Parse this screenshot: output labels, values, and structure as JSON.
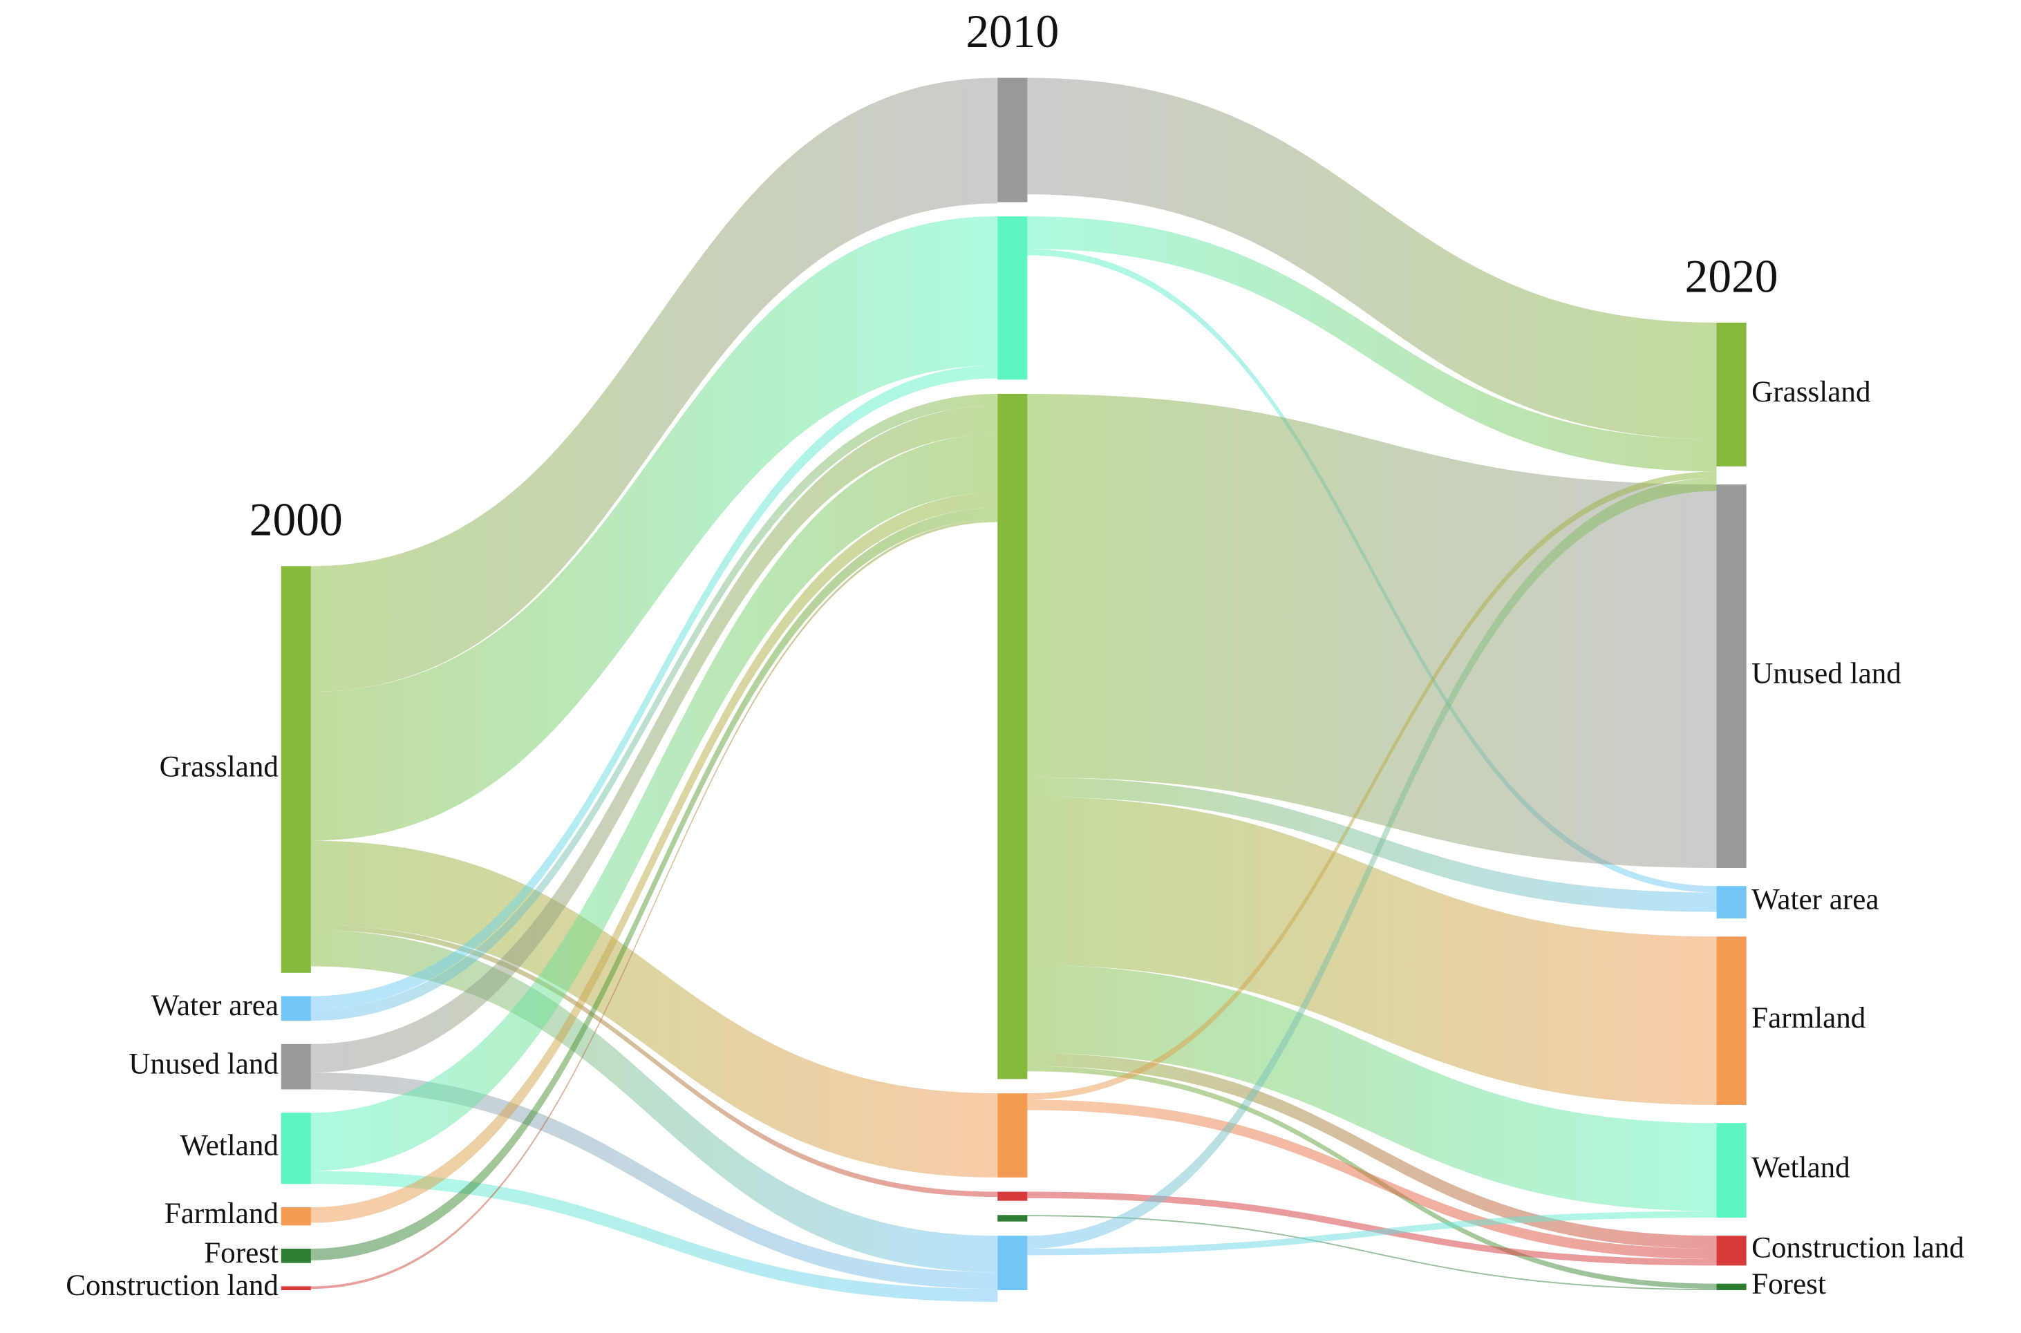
{
  "chart_data": {
    "type": "sankey",
    "columns": [
      {
        "label": "2000",
        "nodes": [
          {
            "name": "Grassland",
            "value": 314,
            "color": "#86b83e"
          },
          {
            "name": "Water area",
            "value": 19,
            "color": "#72c6f8"
          },
          {
            "name": "Unused land",
            "value": 35,
            "color": "#999999"
          },
          {
            "name": "Wetland",
            "value": 55,
            "color": "#5ef5c1"
          },
          {
            "name": "Farmland",
            "value": 14,
            "color": "#f39a53"
          },
          {
            "name": "Forest",
            "value": 11,
            "color": "#2e7d32"
          },
          {
            "name": "Construction land",
            "value": 3,
            "color": "#d63a3a"
          }
        ],
        "links": [
          {
            "source": "Grassland",
            "target": "Unused land",
            "value": 97
          },
          {
            "source": "Grassland",
            "target": "Wetland",
            "value": 115
          },
          {
            "source": "Grassland",
            "target": "Farmland",
            "value": 65
          },
          {
            "source": "Grassland",
            "target": "Construction land",
            "value": 4
          },
          {
            "source": "Grassland",
            "target": "Water area",
            "value": 28
          },
          {
            "source": "Water area",
            "target": "Wetland",
            "value": 10
          },
          {
            "source": "Water area",
            "target": "Grassland",
            "value": 9
          },
          {
            "source": "Unused land",
            "target": "Grassland",
            "value": 22
          },
          {
            "source": "Unused land",
            "target": "Water area",
            "value": 13
          },
          {
            "source": "Wetland",
            "target": "Grassland",
            "value": 45
          },
          {
            "source": "Wetland",
            "target": "Water area",
            "value": 10
          },
          {
            "source": "Farmland",
            "target": "Grassland",
            "value": 12
          },
          {
            "source": "Forest",
            "target": "Grassland",
            "value": 9
          },
          {
            "source": "Construction land",
            "target": "Grassland",
            "value": 2
          }
        ]
      },
      {
        "label": "2010",
        "nodes": [
          {
            "name": "Unused land",
            "value": 96,
            "color": "#999999"
          },
          {
            "name": "Wetland",
            "value": 126,
            "color": "#5ef5c1"
          },
          {
            "name": "Grassland",
            "value": 529,
            "color": "#86b83e"
          },
          {
            "name": "Farmland",
            "value": 65,
            "color": "#f39a53"
          },
          {
            "name": "Construction land",
            "value": 7,
            "color": "#d63a3a"
          },
          {
            "name": "Forest",
            "value": 5,
            "color": "#2e7d32"
          },
          {
            "name": "Water area",
            "value": 42,
            "color": "#72c6f8"
          }
        ],
        "links": [
          {
            "source": "Unused land",
            "target": "Grassland",
            "value": 90
          },
          {
            "source": "Wetland",
            "target": "Grassland",
            "value": 25
          },
          {
            "source": "Wetland",
            "target": "Water area",
            "value": 5
          },
          {
            "source": "Grassland",
            "target": "Unused land",
            "value": 296
          },
          {
            "source": "Grassland",
            "target": "Water area",
            "value": 15
          },
          {
            "source": "Grassland",
            "target": "Farmland",
            "value": 130
          },
          {
            "source": "Grassland",
            "target": "Wetland",
            "value": 68
          },
          {
            "source": "Grassland",
            "target": "Construction land",
            "value": 10
          },
          {
            "source": "Grassland",
            "target": "Forest",
            "value": 4
          },
          {
            "source": "Farmland",
            "target": "Grassland",
            "value": 5
          },
          {
            "source": "Farmland",
            "target": "Construction land",
            "value": 8
          },
          {
            "source": "Construction land",
            "target": "Construction land",
            "value": 5
          },
          {
            "source": "Forest",
            "target": "Forest",
            "value": 1
          },
          {
            "source": "Water area",
            "target": "Grassland",
            "value": 10
          },
          {
            "source": "Water area",
            "target": "Wetland",
            "value": 5
          }
        ]
      },
      {
        "label": "2020",
        "nodes": [
          {
            "name": "Grassland",
            "value": 111,
            "color": "#86b83e"
          },
          {
            "name": "Unused land",
            "value": 296,
            "color": "#999999"
          },
          {
            "name": "Water area",
            "value": 25,
            "color": "#72c6f8"
          },
          {
            "name": "Farmland",
            "value": 130,
            "color": "#f39a53"
          },
          {
            "name": "Wetland",
            "value": 73,
            "color": "#5ef5c1"
          },
          {
            "name": "Construction land",
            "value": 23,
            "color": "#d63a3a"
          },
          {
            "name": "Forest",
            "value": 5,
            "color": "#2e7d32"
          }
        ]
      }
    ]
  }
}
